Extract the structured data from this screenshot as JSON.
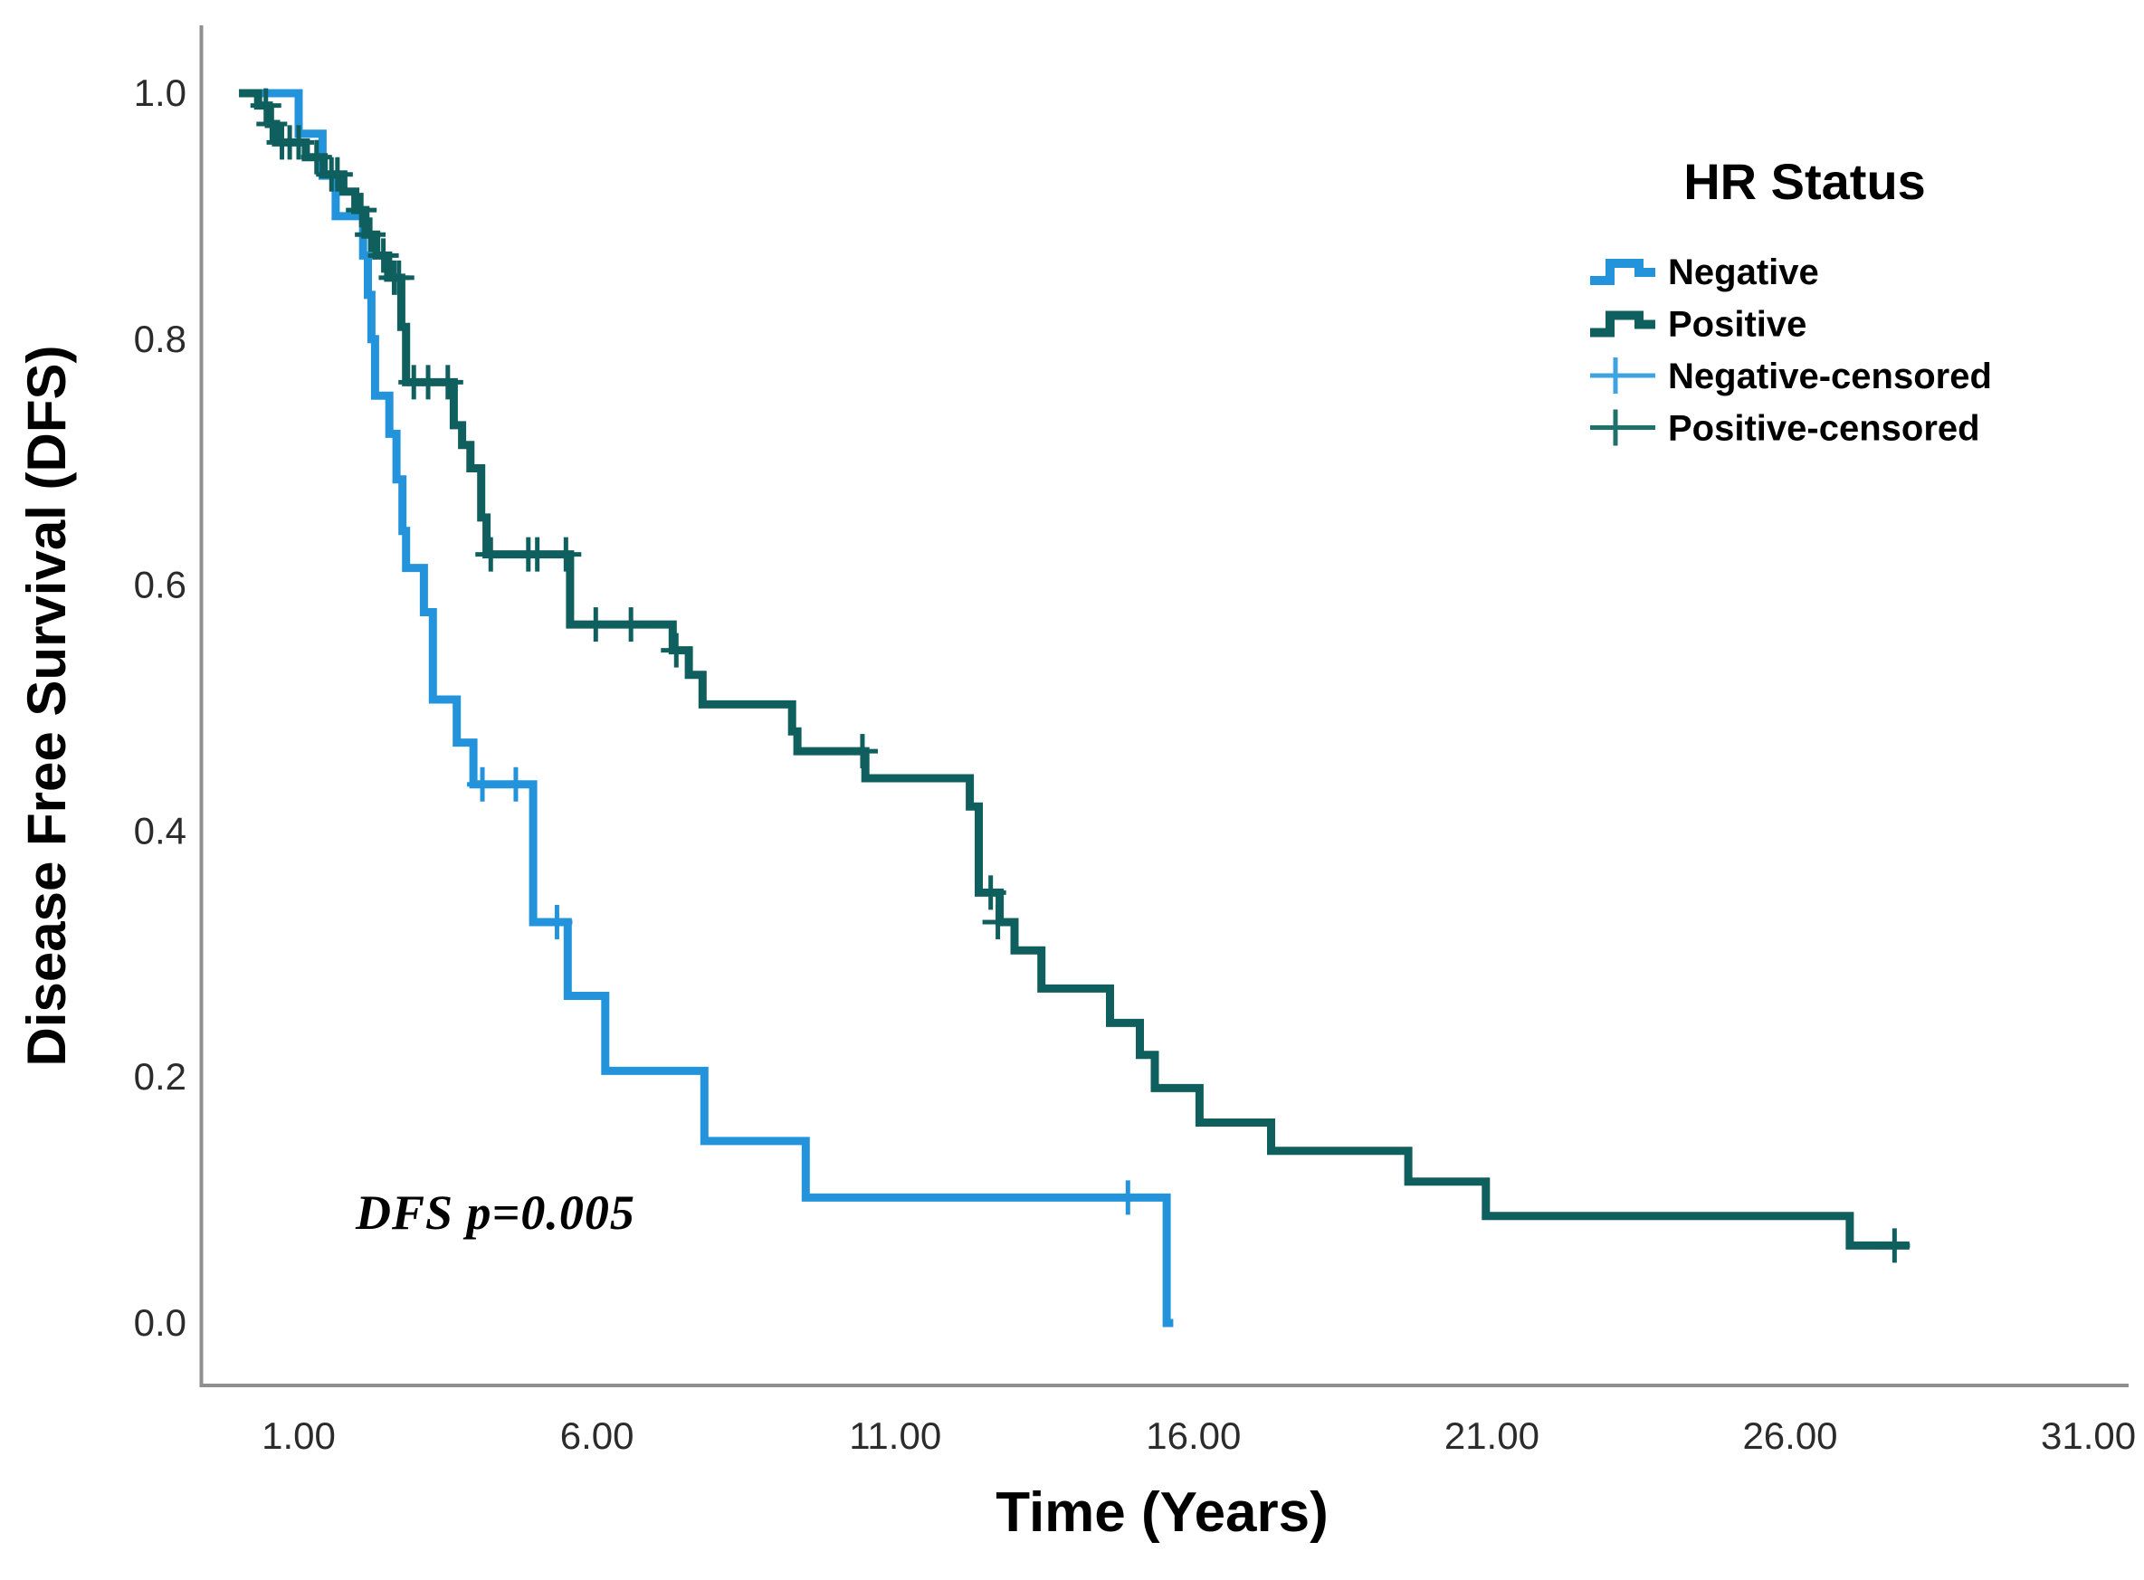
{
  "figure": {
    "background": "#ffffff",
    "axis_color": "#8f8f8f",
    "tick_text_color": "#2b2b2b"
  },
  "chart_data": {
    "type": "line",
    "subtype": "kaplan_meier_step",
    "title": "",
    "xlabel": "Time (Years)",
    "ylabel": "Disease Free Survival (DFS)",
    "annotation": "DFS p=0.005",
    "grid": false,
    "legend_position": "upper-right-inside",
    "x_axis": {
      "range": [
        -0.65,
        31.65
      ],
      "ticks": [
        {
          "label": "1.00",
          "value": 1
        },
        {
          "label": "6.00",
          "value": 6
        },
        {
          "label": "11.00",
          "value": 11
        },
        {
          "label": "16.00",
          "value": 16
        },
        {
          "label": "21.00",
          "value": 21
        },
        {
          "label": "26.00",
          "value": 26
        },
        {
          "label": "31.00",
          "value": 31
        }
      ]
    },
    "y_axis": {
      "range": [
        0.0,
        1.0
      ],
      "ticks": [
        {
          "label": "1.0",
          "value": 1.0
        },
        {
          "label": "0.8",
          "value": 0.8
        },
        {
          "label": "0.6",
          "value": 0.6
        },
        {
          "label": "0.4",
          "value": 0.4
        },
        {
          "label": "0.2",
          "value": 0.2
        },
        {
          "label": "0.0",
          "value": 0.0
        }
      ]
    },
    "legend": {
      "title": "HR Status",
      "entries": [
        {
          "label": "Negative",
          "color": "#2394DC",
          "symbol": "step-line"
        },
        {
          "label": "Positive",
          "color": "#0E5F5D",
          "symbol": "step-line"
        },
        {
          "label": "Negative-censored",
          "color": "#3FA3E0",
          "symbol": "plus"
        },
        {
          "label": "Positive-censored",
          "color": "#20706B",
          "symbol": "plus"
        }
      ]
    },
    "series": [
      {
        "name": "Negative",
        "color": "#2394DC",
        "end_t": 15.66,
        "steps": [
          [
            0.0,
            1.0
          ],
          [
            1.0,
            0.967
          ],
          [
            1.4,
            0.933
          ],
          [
            1.62,
            0.9
          ],
          [
            2.08,
            0.868
          ],
          [
            2.16,
            0.836
          ],
          [
            2.22,
            0.8
          ],
          [
            2.28,
            0.754
          ],
          [
            2.52,
            0.723
          ],
          [
            2.64,
            0.686
          ],
          [
            2.74,
            0.644
          ],
          [
            2.8,
            0.614
          ],
          [
            3.1,
            0.578
          ],
          [
            3.25,
            0.507
          ],
          [
            3.65,
            0.472
          ],
          [
            3.93,
            0.438
          ],
          [
            4.93,
            0.326
          ],
          [
            5.51,
            0.266
          ],
          [
            6.14,
            0.205
          ],
          [
            7.8,
            0.148
          ],
          [
            9.5,
            0.102
          ],
          [
            15.55,
            0.0
          ]
        ],
        "censored": [
          [
            4.08,
            0.438
          ],
          [
            4.64,
            0.438
          ],
          [
            5.33,
            0.326
          ],
          [
            14.9,
            0.102
          ]
        ]
      },
      {
        "name": "Positive",
        "color": "#0E5F5D",
        "end_t": 28.0,
        "steps": [
          [
            0.0,
            1.0
          ],
          [
            0.32,
            0.99
          ],
          [
            0.5,
            0.975
          ],
          [
            0.62,
            0.96
          ],
          [
            1.12,
            0.948
          ],
          [
            1.42,
            0.934
          ],
          [
            1.75,
            0.92
          ],
          [
            1.95,
            0.905
          ],
          [
            2.12,
            0.885
          ],
          [
            2.3,
            0.868
          ],
          [
            2.5,
            0.85
          ],
          [
            2.72,
            0.81
          ],
          [
            2.8,
            0.765
          ],
          [
            3.6,
            0.73
          ],
          [
            3.74,
            0.714
          ],
          [
            3.88,
            0.695
          ],
          [
            4.06,
            0.655
          ],
          [
            4.15,
            0.625
          ],
          [
            5.55,
            0.568
          ],
          [
            7.27,
            0.547
          ],
          [
            7.54,
            0.527
          ],
          [
            7.77,
            0.503
          ],
          [
            9.27,
            0.481
          ],
          [
            9.36,
            0.465
          ],
          [
            10.5,
            0.443
          ],
          [
            12.25,
            0.42
          ],
          [
            12.4,
            0.35
          ],
          [
            12.75,
            0.326
          ],
          [
            13.0,
            0.303
          ],
          [
            13.45,
            0.272
          ],
          [
            14.6,
            0.244
          ],
          [
            15.1,
            0.218
          ],
          [
            15.35,
            0.191
          ],
          [
            16.1,
            0.163
          ],
          [
            17.3,
            0.14
          ],
          [
            19.6,
            0.115
          ],
          [
            20.9,
            0.087
          ],
          [
            27.0,
            0.063
          ]
        ],
        "censored": [
          [
            0.45,
            0.99
          ],
          [
            0.55,
            0.975
          ],
          [
            0.72,
            0.96
          ],
          [
            0.85,
            0.96
          ],
          [
            1.0,
            0.96
          ],
          [
            1.3,
            0.948
          ],
          [
            1.55,
            0.934
          ],
          [
            1.65,
            0.934
          ],
          [
            2.05,
            0.905
          ],
          [
            2.2,
            0.885
          ],
          [
            2.42,
            0.868
          ],
          [
            2.6,
            0.85
          ],
          [
            2.68,
            0.85
          ],
          [
            2.93,
            0.765
          ],
          [
            3.17,
            0.765
          ],
          [
            3.5,
            0.765
          ],
          [
            4.22,
            0.625
          ],
          [
            4.85,
            0.625
          ],
          [
            5.0,
            0.625
          ],
          [
            5.48,
            0.625
          ],
          [
            5.98,
            0.568
          ],
          [
            6.57,
            0.568
          ],
          [
            7.33,
            0.547
          ],
          [
            10.45,
            0.465
          ],
          [
            12.6,
            0.35
          ],
          [
            12.72,
            0.326
          ],
          [
            27.75,
            0.063
          ]
        ]
      }
    ]
  }
}
